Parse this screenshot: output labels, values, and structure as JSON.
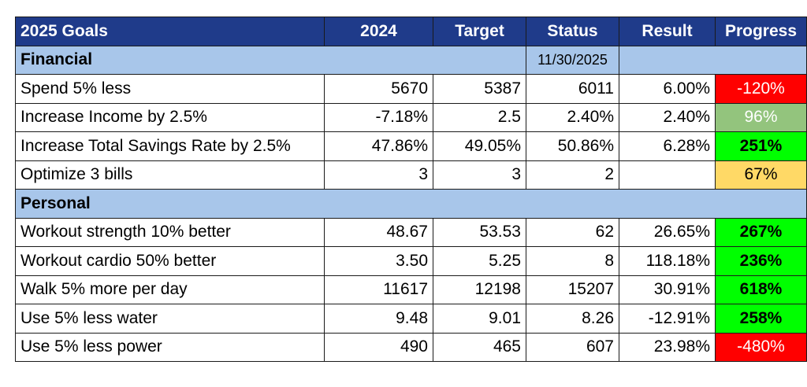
{
  "header": {
    "goals": "2025 Goals",
    "y2024": "2024",
    "target": "Target",
    "status": "Status",
    "result": "Result",
    "progress": "Progress"
  },
  "financial": {
    "label": "Financial",
    "date": "11/30/2025",
    "rows": [
      {
        "goal": "Spend 5% less",
        "y2024": "5670",
        "target": "5387",
        "status": "6011",
        "result": "6.00%",
        "progress": "-120%"
      },
      {
        "goal": "Increase Income by 2.5%",
        "y2024": "-7.18%",
        "target": "2.5",
        "status": "2.40%",
        "result": "2.40%",
        "progress": "96%"
      },
      {
        "goal": "Increase Total Savings Rate by 2.5%",
        "y2024": "47.86%",
        "target": "49.05%",
        "status": "50.86%",
        "result": "6.28%",
        "progress": "251%"
      },
      {
        "goal": "Optimize 3 bills",
        "y2024": "3",
        "target": "3",
        "status": "2",
        "result": "",
        "progress": "67%"
      }
    ]
  },
  "personal": {
    "label": "Personal",
    "rows": [
      {
        "goal": "Workout strength 10% better",
        "y2024": "48.67",
        "target": "53.53",
        "status": "62",
        "result": "26.65%",
        "progress": "267%"
      },
      {
        "goal": "Workout cardio 50% better",
        "y2024": "3.50",
        "target": "5.25",
        "status": "8",
        "result": "118.18%",
        "progress": "236%"
      },
      {
        "goal": "Walk 5% more per day",
        "y2024": "11617",
        "target": "12198",
        "status": "15207",
        "result": "30.91%",
        "progress": "618%"
      },
      {
        "goal": "Use 5% less water",
        "y2024": "9.48",
        "target": "9.01",
        "status": "8.26",
        "result": "-12.91%",
        "progress": "258%"
      },
      {
        "goal": "Use 5% less power",
        "y2024": "490",
        "target": "465",
        "status": "607",
        "result": "23.98%",
        "progress": "-480%"
      }
    ]
  },
  "colors": {
    "header_bg": "#1f3b8a",
    "section_bg": "#a8c6ea",
    "progress_red": "#ff0000",
    "progress_sage": "#93c47d",
    "progress_green": "#00ff00",
    "progress_yellow": "#ffd966"
  }
}
